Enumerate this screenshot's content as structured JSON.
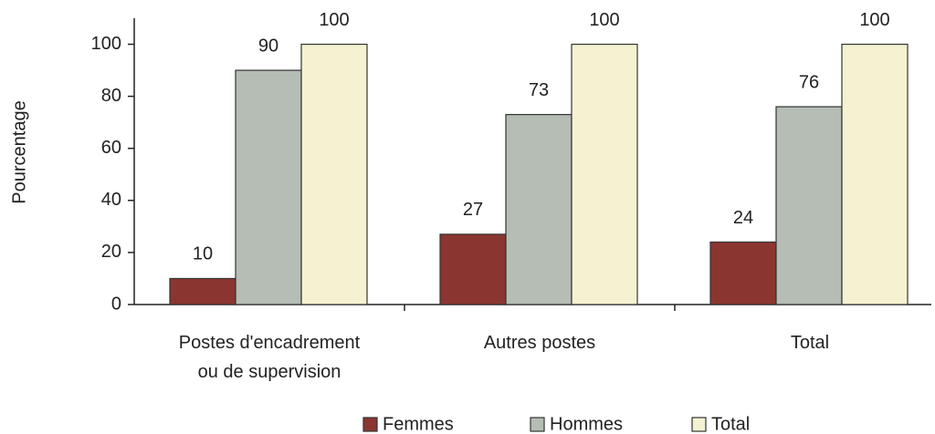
{
  "chart_data": {
    "type": "bar",
    "y_label": "Pourcentage",
    "categories": [
      "Postes d'encadrement\nou de supervision",
      "Autres postes",
      "Total"
    ],
    "series": [
      {
        "name": "Femmes",
        "color": "#8b3530",
        "values": [
          10,
          27,
          24
        ]
      },
      {
        "name": "Hommes",
        "color": "#b5bdb5",
        "values": [
          90,
          73,
          76
        ]
      },
      {
        "name": "Total",
        "color": "#f5f2d2",
        "values": [
          100,
          100,
          100
        ]
      }
    ],
    "ylim": [
      0,
      110
    ],
    "yticks": [
      0,
      20,
      40,
      60,
      80,
      100
    ],
    "grid": false,
    "legend": "bottom"
  }
}
